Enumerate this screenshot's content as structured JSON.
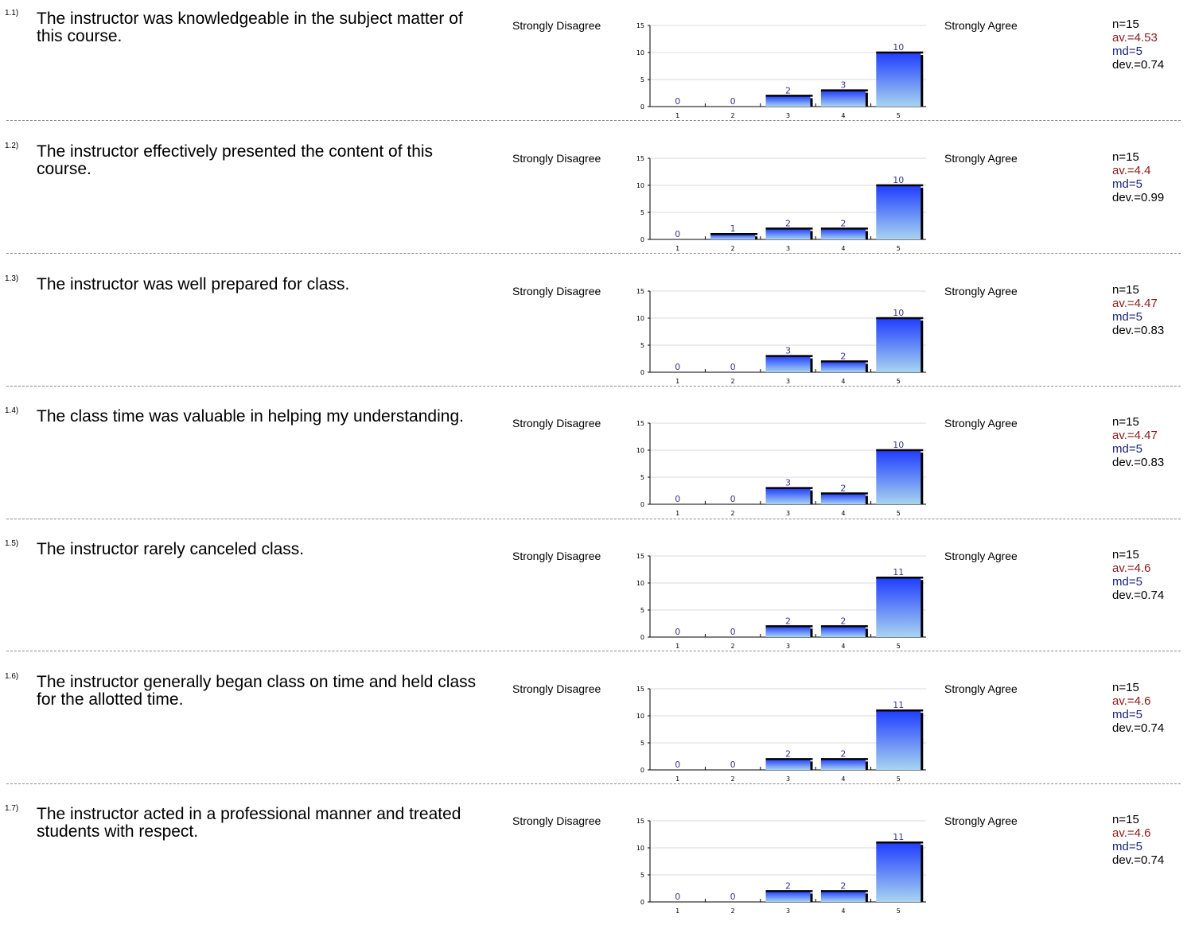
{
  "scale": {
    "left_label": "Strongly Disagree",
    "right_label": "Strongly Agree"
  },
  "colors": {
    "bar_top": "#1f3dff",
    "bar_bottom": "#a8d4f0",
    "avg": "#8b1a1a",
    "median": "#1a237e",
    "value_label": "#3a3a8c"
  },
  "questions": [
    {
      "num": "1.1)",
      "text": "The instructor was knowledgeable in the subject matter of this course.",
      "stats": {
        "n": "n=15",
        "av": "av.=4.53",
        "md": "md=5",
        "dev": "dev.=0.74"
      }
    },
    {
      "num": "1.2)",
      "text": "The instructor effectively presented the content of this course.",
      "stats": {
        "n": "n=15",
        "av": "av.=4.4",
        "md": "md=5",
        "dev": "dev.=0.99"
      }
    },
    {
      "num": "1.3)",
      "text": "The instructor was well prepared for class.",
      "stats": {
        "n": "n=15",
        "av": "av.=4.47",
        "md": "md=5",
        "dev": "dev.=0.83"
      }
    },
    {
      "num": "1.4)",
      "text": "The class time was valuable in helping my understanding.",
      "stats": {
        "n": "n=15",
        "av": "av.=4.47",
        "md": "md=5",
        "dev": "dev.=0.83"
      }
    },
    {
      "num": "1.5)",
      "text": "The instructor rarely canceled class.",
      "stats": {
        "n": "n=15",
        "av": "av.=4.6",
        "md": "md=5",
        "dev": "dev.=0.74"
      }
    },
    {
      "num": "1.6)",
      "text": "The instructor generally began class on time and held class for the allotted time.",
      "stats": {
        "n": "n=15",
        "av": "av.=4.6",
        "md": "md=5",
        "dev": "dev.=0.74"
      }
    },
    {
      "num": "1.7)",
      "text": "The instructor acted in a professional manner and treated students with respect.",
      "stats": {
        "n": "n=15",
        "av": "av.=4.6",
        "md": "md=5",
        "dev": "dev.=0.74"
      }
    }
  ],
  "chart_data": [
    {
      "type": "bar",
      "categories": [
        "1",
        "2",
        "3",
        "4",
        "5"
      ],
      "values": [
        0,
        0,
        2,
        3,
        10
      ],
      "yticks": [
        0,
        5,
        10,
        15
      ],
      "ylim": [
        0,
        15
      ]
    },
    {
      "type": "bar",
      "categories": [
        "1",
        "2",
        "3",
        "4",
        "5"
      ],
      "values": [
        0,
        1,
        2,
        2,
        10
      ],
      "yticks": [
        0,
        5,
        10,
        15
      ],
      "ylim": [
        0,
        15
      ]
    },
    {
      "type": "bar",
      "categories": [
        "1",
        "2",
        "3",
        "4",
        "5"
      ],
      "values": [
        0,
        0,
        3,
        2,
        10
      ],
      "yticks": [
        0,
        5,
        10,
        15
      ],
      "ylim": [
        0,
        15
      ]
    },
    {
      "type": "bar",
      "categories": [
        "1",
        "2",
        "3",
        "4",
        "5"
      ],
      "values": [
        0,
        0,
        3,
        2,
        10
      ],
      "yticks": [
        0,
        5,
        10,
        15
      ],
      "ylim": [
        0,
        15
      ]
    },
    {
      "type": "bar",
      "categories": [
        "1",
        "2",
        "3",
        "4",
        "5"
      ],
      "values": [
        0,
        0,
        2,
        2,
        11
      ],
      "yticks": [
        0,
        5,
        10,
        15
      ],
      "ylim": [
        0,
        15
      ]
    },
    {
      "type": "bar",
      "categories": [
        "1",
        "2",
        "3",
        "4",
        "5"
      ],
      "values": [
        0,
        0,
        2,
        2,
        11
      ],
      "yticks": [
        0,
        5,
        10,
        15
      ],
      "ylim": [
        0,
        15
      ]
    },
    {
      "type": "bar",
      "categories": [
        "1",
        "2",
        "3",
        "4",
        "5"
      ],
      "values": [
        0,
        0,
        2,
        2,
        11
      ],
      "yticks": [
        0,
        5,
        10,
        15
      ],
      "ylim": [
        0,
        15
      ]
    }
  ]
}
